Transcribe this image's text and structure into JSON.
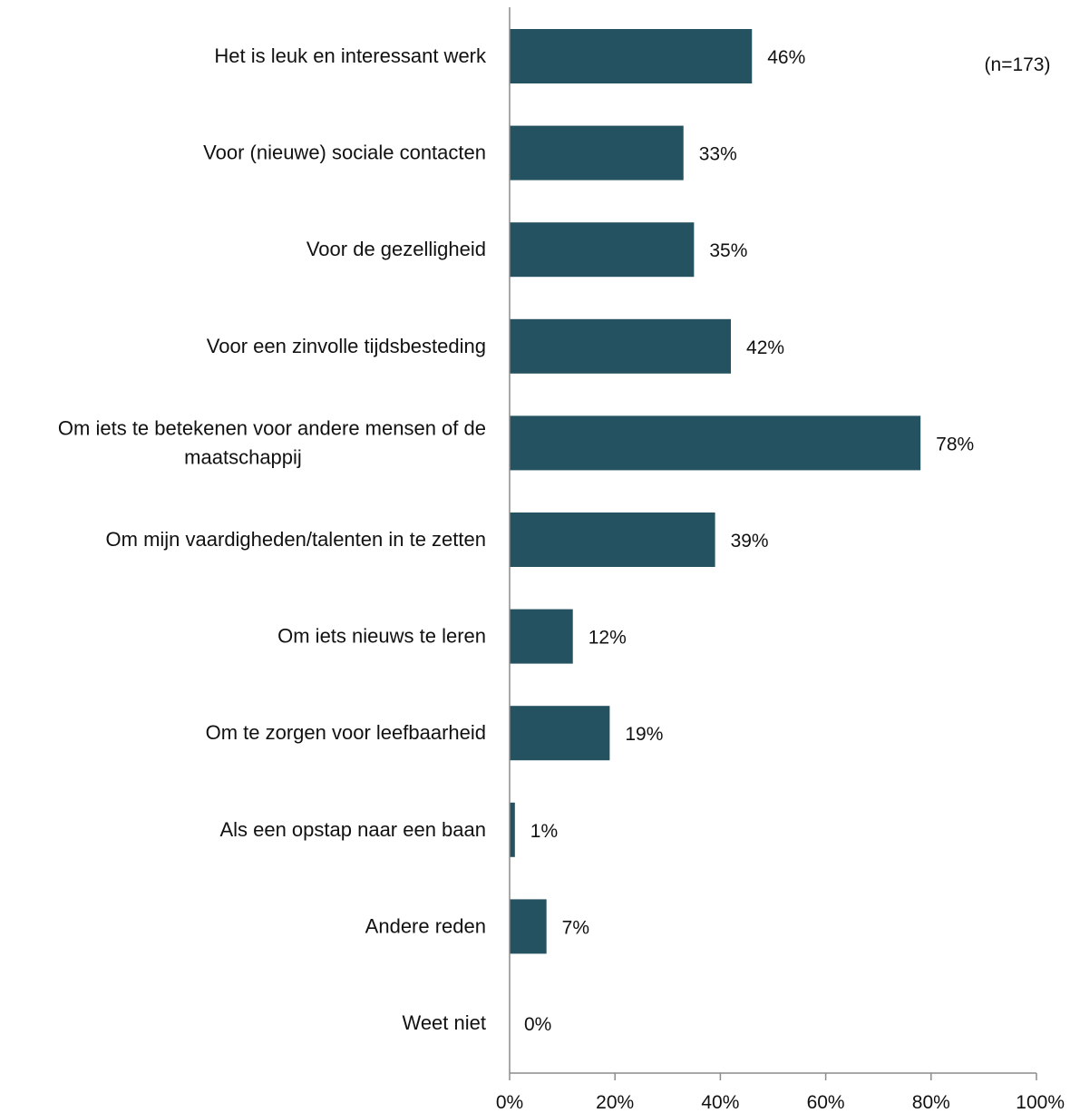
{
  "chart_data": {
    "type": "bar",
    "orientation": "horizontal",
    "categories": [
      [
        "Het is leuk en interessant werk"
      ],
      [
        "Voor (nieuwe) sociale contacten"
      ],
      [
        "Voor de gezelligheid"
      ],
      [
        "Voor een zinvolle tijdsbesteding"
      ],
      [
        "Om iets te betekenen voor andere mensen of de",
        "maatschappij"
      ],
      [
        "Om mijn vaardigheden/talenten in te zetten"
      ],
      [
        "Om iets nieuws te leren"
      ],
      [
        "Om te zorgen voor leefbaarheid"
      ],
      [
        "Als een opstap naar een baan"
      ],
      [
        "Andere reden"
      ],
      [
        "Weet niet"
      ]
    ],
    "values": [
      46,
      33,
      35,
      42,
      78,
      39,
      12,
      19,
      1,
      7,
      0
    ],
    "value_labels": [
      "46%",
      "33%",
      "35%",
      "42%",
      "78%",
      "39%",
      "12%",
      "19%",
      "1%",
      "7%",
      "0%"
    ],
    "xlim": [
      0,
      100
    ],
    "xticks": [
      0,
      20,
      40,
      60,
      80,
      100
    ],
    "xtick_labels": [
      "0%",
      "20%",
      "40%",
      "60%",
      "80%",
      "100%"
    ],
    "bar_color": "#245260",
    "grid": false,
    "legend": "none",
    "note": "(n=173)"
  }
}
